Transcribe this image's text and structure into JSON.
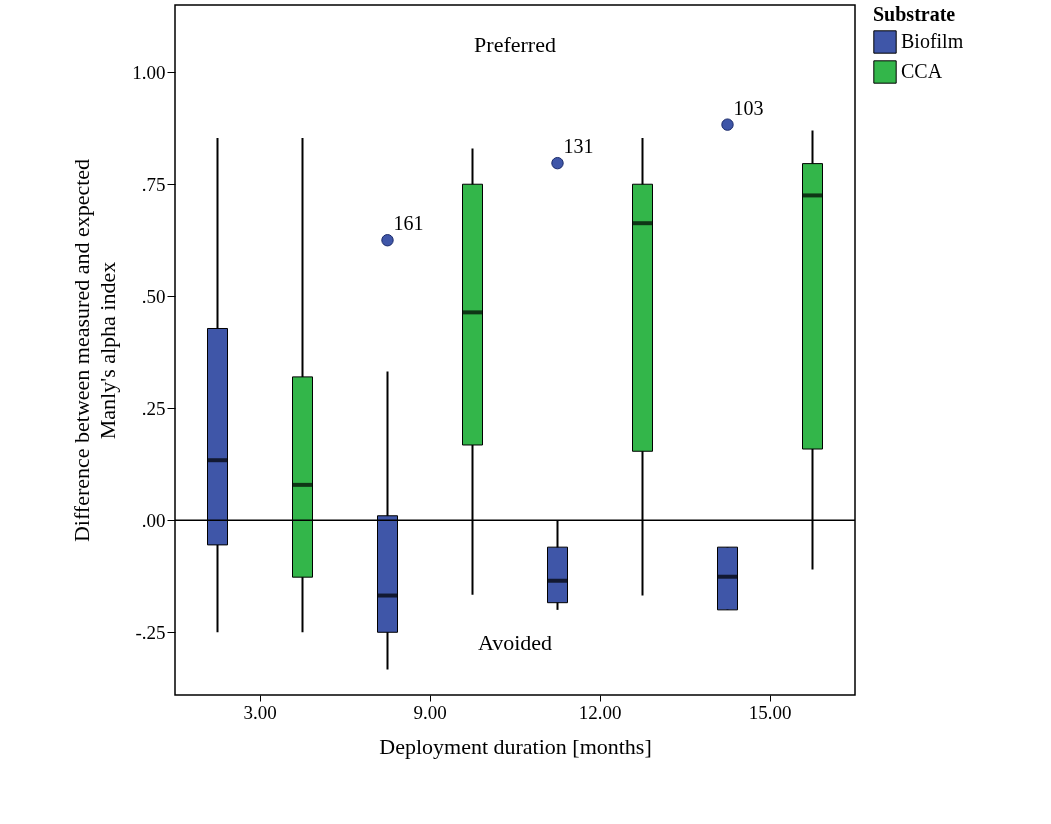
{
  "chart_data": {
    "type": "box",
    "xlabel": "Deployment duration [months]",
    "ylabel": "Difference between measured and expected\nManly's alpha index",
    "legend_title": "Substrate",
    "categories": [
      "3.00",
      "9.00",
      "12.00",
      "15.00"
    ],
    "series": [
      {
        "name": "Biofilm",
        "color": "#3f56a8",
        "boxes": [
          {
            "low": -0.25,
            "q1": -0.055,
            "median": 0.134,
            "q3": 0.428,
            "high": 0.853
          },
          {
            "low": -0.333,
            "q1": -0.25,
            "median": -0.168,
            "q3": 0.01,
            "high": 0.332,
            "outliers": [
              0.625
            ]
          },
          {
            "low": -0.2,
            "q1": -0.184,
            "median": -0.135,
            "q3": -0.06,
            "high": 0.0,
            "outliers": [
              0.797
            ]
          },
          {
            "low": -0.2,
            "q1": -0.2,
            "median": -0.126,
            "q3": -0.06,
            "high": -0.06,
            "outliers": [
              0.883
            ]
          }
        ]
      },
      {
        "name": "CCA",
        "color": "#33b64a",
        "boxes": [
          {
            "low": -0.25,
            "q1": -0.127,
            "median": 0.079,
            "q3": 0.32,
            "high": 0.853
          },
          {
            "low": -0.166,
            "q1": 0.168,
            "median": 0.464,
            "q3": 0.75,
            "high": 0.83
          },
          {
            "low": -0.168,
            "q1": 0.154,
            "median": 0.663,
            "q3": 0.75,
            "high": 0.853
          },
          {
            "low": -0.11,
            "q1": 0.159,
            "median": 0.725,
            "q3": 0.796,
            "high": 0.87
          }
        ]
      }
    ],
    "ylim": [
      -0.39,
      1.15
    ],
    "yticks": [
      {
        "value": -0.25,
        "label": "-.25"
      },
      {
        "value": 0,
        "label": ".00"
      },
      {
        "value": 0.25,
        "label": ".25"
      },
      {
        "value": 0.5,
        "label": ".50"
      },
      {
        "value": 0.75,
        "label": ".75"
      },
      {
        "value": 1,
        "label": "1.00"
      }
    ],
    "ref_lines": [
      {
        "axis": "y",
        "value": 0
      }
    ],
    "annotations": [
      "Preferred",
      "Avoided",
      "161",
      "131",
      "103"
    ],
    "legend": "top right",
    "grid": false
  }
}
